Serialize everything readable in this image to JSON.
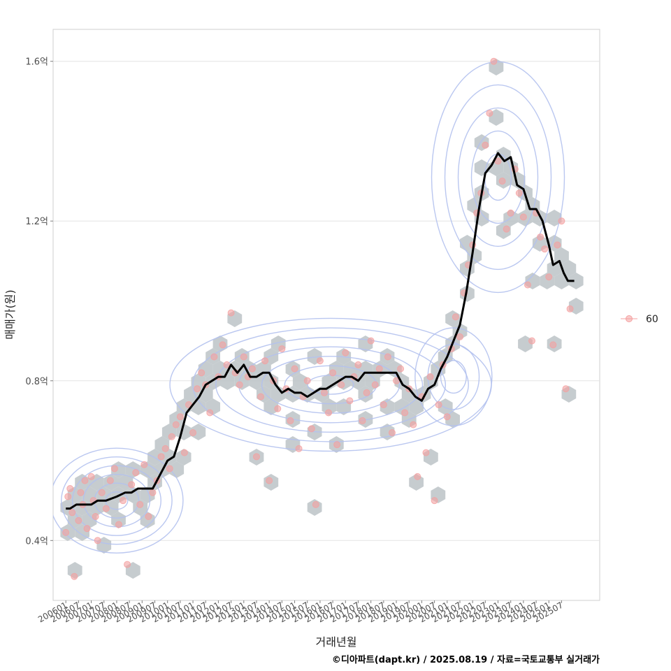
{
  "chart_data": {
    "type": "scatter",
    "xlabel": "거래년월",
    "ylabel": "매매가(원)",
    "caption": "©디아파트(dapt.kr) / 2025.08.19 / 자료=국토교통부 실거래가",
    "y_unit": "억",
    "ylim": [
      0.25,
      1.68
    ],
    "yticks": [
      {
        "value": 0.4,
        "label": "0.4억"
      },
      {
        "value": 0.8,
        "label": "0.8억"
      },
      {
        "value": 1.2,
        "label": "1.2억"
      },
      {
        "value": 1.6,
        "label": "1.6억"
      }
    ],
    "xlim": [
      "2005-07",
      "2027-01"
    ],
    "xticks": [
      "200601",
      "200607",
      "200701",
      "200707",
      "200801",
      "200807",
      "200901",
      "200907",
      "201001",
      "201007",
      "201101",
      "201107",
      "201201",
      "201207",
      "201301",
      "201307",
      "201401",
      "201407",
      "201501",
      "201507",
      "201601",
      "201607",
      "201701",
      "201707",
      "201801",
      "201807",
      "201901",
      "201907",
      "202001",
      "202007",
      "202101",
      "202107",
      "202201",
      "202207",
      "202301",
      "202307",
      "202401",
      "202407",
      "202501",
      "202507"
    ],
    "legend": {
      "position": "right",
      "entries": [
        {
          "label": "60"
        }
      ]
    },
    "grid": true,
    "colors": {
      "points": "#f4a0a0",
      "hex": "#bcc3c7",
      "contour": "#b3c1ee",
      "line": "#000000"
    },
    "series": [
      {
        "name": "moving-average",
        "kind": "line",
        "points": [
          [
            "2006-01",
            0.48
          ],
          [
            "2006-03",
            0.48
          ],
          [
            "2006-06",
            0.49
          ],
          [
            "2006-09",
            0.49
          ],
          [
            "2007-01",
            0.49
          ],
          [
            "2007-04",
            0.5
          ],
          [
            "2007-08",
            0.5
          ],
          [
            "2008-01",
            0.51
          ],
          [
            "2008-05",
            0.52
          ],
          [
            "2008-08",
            0.52
          ],
          [
            "2008-11",
            0.53
          ],
          [
            "2009-03",
            0.53
          ],
          [
            "2009-06",
            0.53
          ],
          [
            "2009-10",
            0.57
          ],
          [
            "2010-01",
            0.6
          ],
          [
            "2010-04",
            0.61
          ],
          [
            "2010-07",
            0.66
          ],
          [
            "2010-10",
            0.72
          ],
          [
            "2011-01",
            0.74
          ],
          [
            "2011-04",
            0.76
          ],
          [
            "2011-07",
            0.79
          ],
          [
            "2011-10",
            0.8
          ],
          [
            "2012-01",
            0.81
          ],
          [
            "2012-04",
            0.81
          ],
          [
            "2012-07",
            0.84
          ],
          [
            "2012-10",
            0.82
          ],
          [
            "2013-01",
            0.84
          ],
          [
            "2013-04",
            0.81
          ],
          [
            "2013-07",
            0.81
          ],
          [
            "2013-10",
            0.82
          ],
          [
            "2014-01",
            0.82
          ],
          [
            "2014-04",
            0.79
          ],
          [
            "2014-07",
            0.77
          ],
          [
            "2014-10",
            0.78
          ],
          [
            "2015-01",
            0.77
          ],
          [
            "2015-04",
            0.77
          ],
          [
            "2015-07",
            0.76
          ],
          [
            "2015-10",
            0.77
          ],
          [
            "2016-01",
            0.78
          ],
          [
            "2016-04",
            0.78
          ],
          [
            "2016-07",
            0.79
          ],
          [
            "2016-10",
            0.8
          ],
          [
            "2017-01",
            0.81
          ],
          [
            "2017-04",
            0.81
          ],
          [
            "2017-07",
            0.8
          ],
          [
            "2017-10",
            0.82
          ],
          [
            "2018-01",
            0.82
          ],
          [
            "2018-04",
            0.82
          ],
          [
            "2018-07",
            0.82
          ],
          [
            "2018-10",
            0.82
          ],
          [
            "2019-01",
            0.82
          ],
          [
            "2019-04",
            0.79
          ],
          [
            "2019-07",
            0.78
          ],
          [
            "2019-10",
            0.76
          ],
          [
            "2020-01",
            0.75
          ],
          [
            "2020-04",
            0.78
          ],
          [
            "2020-07",
            0.79
          ],
          [
            "2020-10",
            0.83
          ],
          [
            "2021-01",
            0.86
          ],
          [
            "2021-04",
            0.9
          ],
          [
            "2021-07",
            0.94
          ],
          [
            "2021-10",
            1.02
          ],
          [
            "2022-01",
            1.12
          ],
          [
            "2022-04",
            1.23
          ],
          [
            "2022-07",
            1.32
          ],
          [
            "2022-10",
            1.34
          ],
          [
            "2023-01",
            1.37
          ],
          [
            "2023-04",
            1.35
          ],
          [
            "2023-07",
            1.36
          ],
          [
            "2023-10",
            1.29
          ],
          [
            "2024-01",
            1.28
          ],
          [
            "2024-04",
            1.23
          ],
          [
            "2024-07",
            1.23
          ],
          [
            "2024-10",
            1.2
          ],
          [
            "2025-01",
            1.14
          ],
          [
            "2025-03",
            1.09
          ],
          [
            "2025-06",
            1.1
          ],
          [
            "2025-08",
            1.07
          ],
          [
            "2025-10",
            1.05
          ],
          [
            "2026-01",
            1.05
          ]
        ]
      },
      {
        "name": "60",
        "kind": "points",
        "points": [
          [
            "2006-01",
            0.42
          ],
          [
            "2006-02",
            0.51
          ],
          [
            "2006-03",
            0.53
          ],
          [
            "2006-04",
            0.47
          ],
          [
            "2006-05",
            0.31
          ],
          [
            "2006-07",
            0.45
          ],
          [
            "2006-08",
            0.52
          ],
          [
            "2006-09",
            0.49
          ],
          [
            "2006-10",
            0.55
          ],
          [
            "2006-11",
            0.43
          ],
          [
            "2007-01",
            0.56
          ],
          [
            "2007-02",
            0.5
          ],
          [
            "2007-03",
            0.46
          ],
          [
            "2007-04",
            0.4
          ],
          [
            "2007-06",
            0.52
          ],
          [
            "2007-08",
            0.48
          ],
          [
            "2007-10",
            0.55
          ],
          [
            "2007-12",
            0.58
          ],
          [
            "2008-02",
            0.44
          ],
          [
            "2008-04",
            0.5
          ],
          [
            "2008-06",
            0.34
          ],
          [
            "2008-08",
            0.54
          ],
          [
            "2008-10",
            0.57
          ],
          [
            "2008-12",
            0.49
          ],
          [
            "2009-02",
            0.59
          ],
          [
            "2009-04",
            0.46
          ],
          [
            "2009-06",
            0.52
          ],
          [
            "2009-08",
            0.55
          ],
          [
            "2009-10",
            0.61
          ],
          [
            "2009-12",
            0.63
          ],
          [
            "2010-02",
            0.58
          ],
          [
            "2010-03",
            0.66
          ],
          [
            "2010-05",
            0.69
          ],
          [
            "2010-07",
            0.71
          ],
          [
            "2010-09",
            0.62
          ],
          [
            "2010-11",
            0.74
          ],
          [
            "2011-01",
            0.67
          ],
          [
            "2011-03",
            0.78
          ],
          [
            "2011-05",
            0.82
          ],
          [
            "2011-07",
            0.79
          ],
          [
            "2011-09",
            0.72
          ],
          [
            "2011-11",
            0.86
          ],
          [
            "2012-01",
            0.81
          ],
          [
            "2012-03",
            0.89
          ],
          [
            "2012-05",
            0.84
          ],
          [
            "2012-07",
            0.97
          ],
          [
            "2012-09",
            0.82
          ],
          [
            "2012-11",
            0.79
          ],
          [
            "2013-01",
            0.86
          ],
          [
            "2013-03",
            0.81
          ],
          [
            "2013-05",
            0.83
          ],
          [
            "2013-07",
            0.61
          ],
          [
            "2013-09",
            0.76
          ],
          [
            "2013-11",
            0.85
          ],
          [
            "2014-01",
            0.55
          ],
          [
            "2014-03",
            0.8
          ],
          [
            "2014-05",
            0.73
          ],
          [
            "2014-07",
            0.88
          ],
          [
            "2014-09",
            0.78
          ],
          [
            "2014-11",
            0.7
          ],
          [
            "2015-01",
            0.83
          ],
          [
            "2015-03",
            0.63
          ],
          [
            "2015-05",
            0.76
          ],
          [
            "2015-07",
            0.8
          ],
          [
            "2015-09",
            0.68
          ],
          [
            "2015-11",
            0.49
          ],
          [
            "2016-01",
            0.85
          ],
          [
            "2016-03",
            0.77
          ],
          [
            "2016-05",
            0.72
          ],
          [
            "2016-07",
            0.82
          ],
          [
            "2016-09",
            0.64
          ],
          [
            "2016-11",
            0.79
          ],
          [
            "2017-01",
            0.87
          ],
          [
            "2017-03",
            0.75
          ],
          [
            "2017-05",
            0.81
          ],
          [
            "2017-07",
            0.84
          ],
          [
            "2017-09",
            0.7
          ],
          [
            "2017-11",
            0.77
          ],
          [
            "2018-01",
            0.9
          ],
          [
            "2018-03",
            0.79
          ],
          [
            "2018-05",
            0.83
          ],
          [
            "2018-07",
            0.74
          ],
          [
            "2018-09",
            0.86
          ],
          [
            "2018-11",
            0.67
          ],
          [
            "2019-01",
            0.8
          ],
          [
            "2019-03",
            0.83
          ],
          [
            "2019-05",
            0.72
          ],
          [
            "2019-07",
            0.78
          ],
          [
            "2019-09",
            0.69
          ],
          [
            "2019-11",
            0.56
          ],
          [
            "2020-01",
            0.76
          ],
          [
            "2020-03",
            0.62
          ],
          [
            "2020-05",
            0.81
          ],
          [
            "2020-07",
            0.5
          ],
          [
            "2020-09",
            0.74
          ],
          [
            "2020-11",
            0.84
          ],
          [
            "2021-01",
            0.71
          ],
          [
            "2021-03",
            0.88
          ],
          [
            "2021-05",
            0.96
          ],
          [
            "2021-07",
            0.91
          ],
          [
            "2021-09",
            1.02
          ],
          [
            "2021-11",
            1.09
          ],
          [
            "2022-01",
            1.14
          ],
          [
            "2022-03",
            1.22
          ],
          [
            "2022-05",
            1.27
          ],
          [
            "2022-07",
            1.39
          ],
          [
            "2022-09",
            1.47
          ],
          [
            "2022-11",
            1.6
          ],
          [
            "2023-01",
            1.35
          ],
          [
            "2023-03",
            1.3
          ],
          [
            "2023-05",
            1.18
          ],
          [
            "2023-07",
            1.22
          ],
          [
            "2023-09",
            1.33
          ],
          [
            "2023-11",
            1.27
          ],
          [
            "2024-01",
            1.21
          ],
          [
            "2024-03",
            1.04
          ],
          [
            "2024-05",
            0.9
          ],
          [
            "2024-07",
            1.22
          ],
          [
            "2024-09",
            1.16
          ],
          [
            "2024-11",
            1.13
          ],
          [
            "2025-01",
            1.06
          ],
          [
            "2025-03",
            0.89
          ],
          [
            "2025-05",
            1.14
          ],
          [
            "2025-07",
            1.2
          ],
          [
            "2025-09",
            0.78
          ],
          [
            "2025-11",
            0.98
          ]
        ]
      }
    ]
  }
}
